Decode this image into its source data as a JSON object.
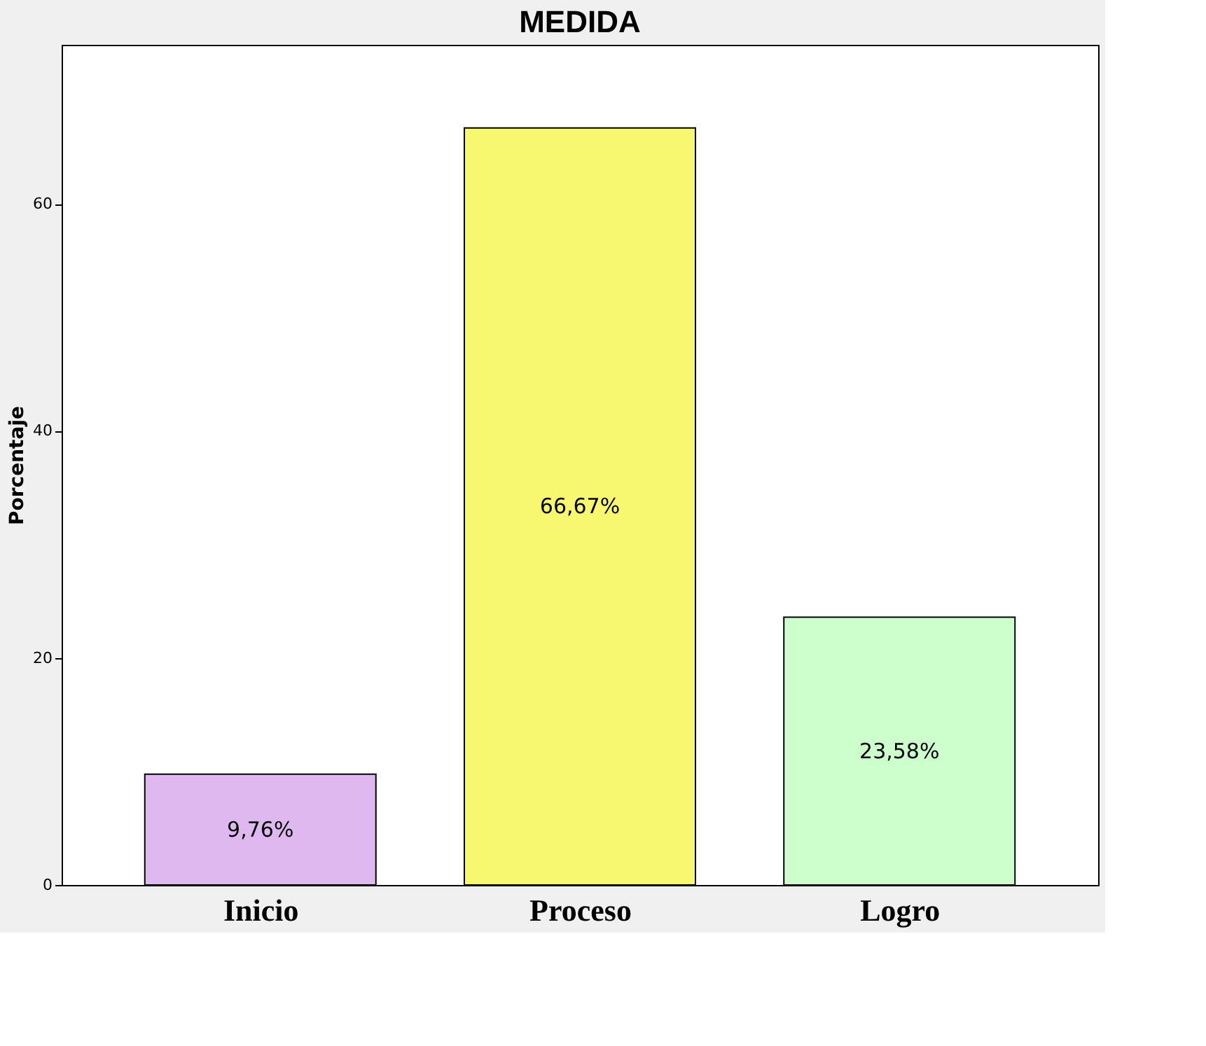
{
  "chart_data": {
    "type": "bar",
    "title": "MEDIDA",
    "ylabel": "Porcentaje",
    "categories": [
      "Inicio",
      "Proceso",
      "Logro"
    ],
    "values": [
      9.76,
      66.67,
      23.58
    ],
    "colors": [
      "#e0b8f0",
      "#f8f870",
      "#ccffcc"
    ],
    "value_labels": [
      "9,76%",
      "66,67%",
      "23,58%"
    ],
    "ylim": [
      0,
      74
    ],
    "yticks": [
      0,
      20,
      40,
      60
    ],
    "grid": false
  }
}
